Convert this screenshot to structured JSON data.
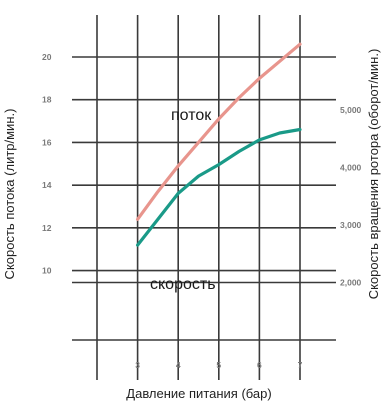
{
  "chart_data": {
    "type": "line",
    "xlabel": "Давление питания (бар)",
    "ylabel": "Скорость потока (литр/мин.)",
    "y2label": "Скорость вращения ротора (оборот/мин.)",
    "x_ticks": [
      "3",
      "4",
      "5",
      "6",
      "7"
    ],
    "y_ticks": [
      "20",
      "18",
      "16",
      "14",
      "12",
      "10"
    ],
    "y2_ticks": [
      "5,000",
      "4,000",
      "3,000",
      "2,000"
    ],
    "xlim": [
      2,
      7
    ],
    "ylim": [
      6,
      22
    ],
    "y2lim": [
      0,
      8000
    ],
    "grid": true,
    "series": [
      {
        "name": "поток",
        "axis": "left",
        "color": "#e8958d",
        "x": [
          3,
          3.5,
          4,
          4.5,
          5,
          5.5,
          6,
          6.5,
          7
        ],
        "y": [
          12.4,
          13.7,
          14.9,
          16.0,
          17.1,
          18.1,
          19.0,
          19.8,
          20.6
        ]
      },
      {
        "name": "скорость",
        "axis": "right",
        "color": "#1a9a88",
        "x": [
          3,
          3.5,
          4,
          4.5,
          5,
          5.5,
          6,
          6.5,
          7
        ],
        "y": [
          2650,
          3100,
          3550,
          3850,
          4050,
          4280,
          4480,
          4600,
          4660
        ]
      }
    ]
  }
}
